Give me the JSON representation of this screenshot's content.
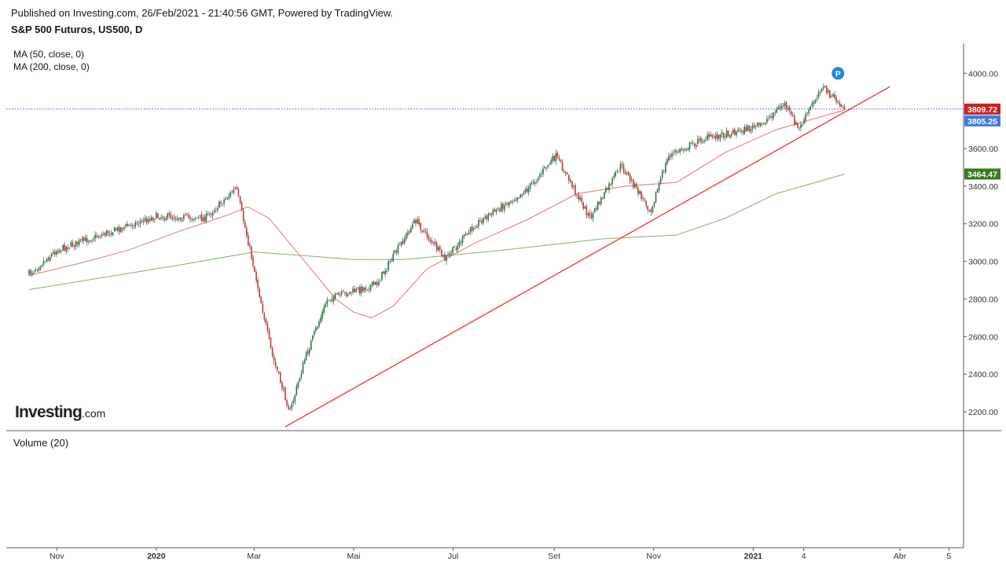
{
  "header": {
    "published": "Published on Investing.com, 26/Feb/2021 - 21:40:56 GMT, Powered by TradingView.",
    "symbol": "S&P 500 Futuros, US500, D"
  },
  "legend": {
    "ma50": "MA (50, close, 0)",
    "ma200": "MA (200, close, 0)"
  },
  "volume_pane": {
    "label": "Volume (20)"
  },
  "logo": {
    "brand": "Investing",
    "suffix": ".com"
  },
  "marker": {
    "label": "P"
  },
  "colors": {
    "up": "#1e7a3c",
    "down": "#d32f2f",
    "ma50": "#e57373",
    "ma200": "#7cb46b",
    "trendline": "#ff2a2a",
    "last_price_tag": "#cc1f1f",
    "bid_tag": "#3c7be6",
    "ma200_tag": "#3c7a1e",
    "marker": "#1e88e5"
  },
  "chart_data": {
    "type": "candlestick",
    "title": "S&P 500 Futuros, US500, D",
    "x_ticks": [
      "Nov",
      "2020",
      "Mar",
      "Mai",
      "Jul",
      "Set",
      "Nov",
      "2021",
      "4",
      "Abr",
      "5"
    ],
    "y_ticks": [
      "2200.00",
      "2400.00",
      "2600.00",
      "2800.00",
      "3000.00",
      "3200.00",
      "3400.00",
      "3600.00",
      "4000.00"
    ],
    "ylim": [
      2100,
      4160
    ],
    "price_points": [
      [
        "2019-10-15",
        2935
      ],
      [
        "2019-11-01",
        3060
      ],
      [
        "2019-12-01",
        3150
      ],
      [
        "2020-01-01",
        3240
      ],
      [
        "2020-01-31",
        3230
      ],
      [
        "2020-02-19",
        3390
      ],
      [
        "2020-03-01",
        2960
      ],
      [
        "2020-03-12",
        2500
      ],
      [
        "2020-03-23",
        2200
      ],
      [
        "2020-04-01",
        2480
      ],
      [
        "2020-04-15",
        2800
      ],
      [
        "2020-05-01",
        2840
      ],
      [
        "2020-05-15",
        2880
      ],
      [
        "2020-06-08",
        3220
      ],
      [
        "2020-06-26",
        3010
      ],
      [
        "2020-07-15",
        3200
      ],
      [
        "2020-08-15",
        3380
      ],
      [
        "2020-09-02",
        3560
      ],
      [
        "2020-09-23",
        3230
      ],
      [
        "2020-10-12",
        3510
      ],
      [
        "2020-10-30",
        3270
      ],
      [
        "2020-11-10",
        3560
      ],
      [
        "2020-12-01",
        3650
      ],
      [
        "2021-01-05",
        3720
      ],
      [
        "2021-01-20",
        3840
      ],
      [
        "2021-01-29",
        3700
      ],
      [
        "2021-02-12",
        3930
      ],
      [
        "2021-02-26",
        3810
      ]
    ],
    "ma50_points": [
      [
        "2019-10-15",
        2925
      ],
      [
        "2019-11-15",
        2990
      ],
      [
        "2019-12-15",
        3060
      ],
      [
        "2020-01-15",
        3160
      ],
      [
        "2020-02-15",
        3250
      ],
      [
        "2020-02-26",
        3290
      ],
      [
        "2020-03-10",
        3230
      ],
      [
        "2020-04-01",
        3000
      ],
      [
        "2020-04-20",
        2800
      ],
      [
        "2020-05-01",
        2730
      ],
      [
        "2020-05-12",
        2700
      ],
      [
        "2020-05-25",
        2760
      ],
      [
        "2020-06-15",
        2960
      ],
      [
        "2020-07-15",
        3100
      ],
      [
        "2020-08-15",
        3220
      ],
      [
        "2020-09-15",
        3360
      ],
      [
        "2020-10-15",
        3400
      ],
      [
        "2020-11-15",
        3420
      ],
      [
        "2020-12-15",
        3580
      ],
      [
        "2021-01-15",
        3700
      ],
      [
        "2021-02-26",
        3805
      ]
    ],
    "ma200_points": [
      [
        "2019-10-15",
        2850
      ],
      [
        "2020-01-15",
        2980
      ],
      [
        "2020-03-01",
        3050
      ],
      [
        "2020-04-01",
        3030
      ],
      [
        "2020-05-01",
        3010
      ],
      [
        "2020-06-01",
        3010
      ],
      [
        "2020-08-01",
        3060
      ],
      [
        "2020-10-01",
        3120
      ],
      [
        "2020-11-15",
        3140
      ],
      [
        "2020-12-15",
        3230
      ],
      [
        "2021-01-15",
        3360
      ],
      [
        "2021-02-26",
        3464
      ]
    ],
    "trendline": {
      "from": [
        "2020-03-20",
        2120
      ],
      "to": [
        "2021-03-26",
        3930
      ]
    },
    "last_price": "3809.72",
    "bid_price": "3805.25",
    "ma200_value": "3464.47"
  }
}
